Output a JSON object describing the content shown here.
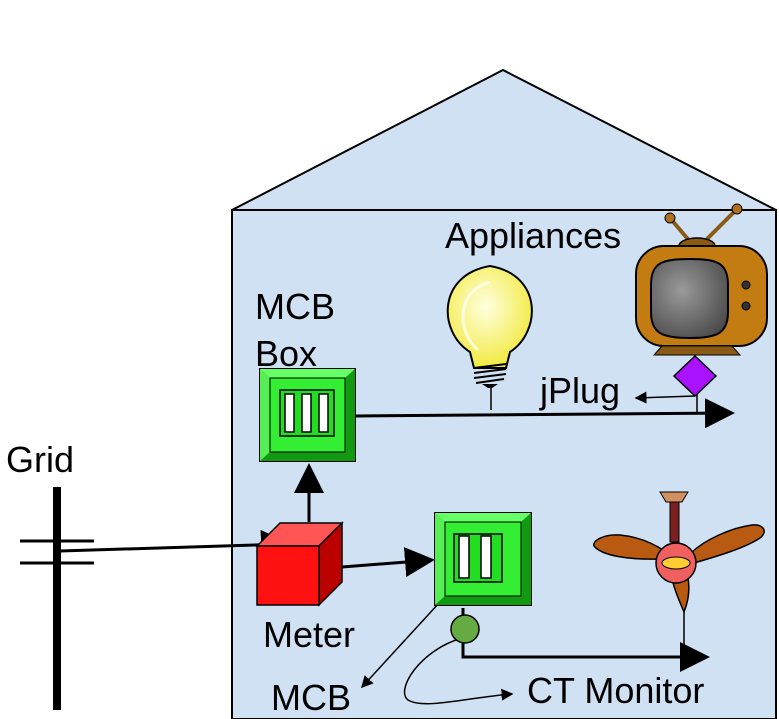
{
  "labels": {
    "appliances": "Appliances",
    "mcb_box_line1": "MCB",
    "mcb_box_line2": "Box",
    "jplug": "jPlug",
    "grid": "Grid",
    "meter": "Meter",
    "mcb": "MCB",
    "ct_monitor": "CT Monitor"
  },
  "colors": {
    "house_fill": "#cfe1f3",
    "mcb_green": "#33ee33",
    "meter_red": "#ff1111",
    "jplug_purple": "#aa11ff",
    "ct_green": "#66aa44"
  },
  "icons": {
    "bulb": "light-bulb-icon",
    "tv": "tv-icon",
    "fan": "ceiling-fan-icon"
  }
}
